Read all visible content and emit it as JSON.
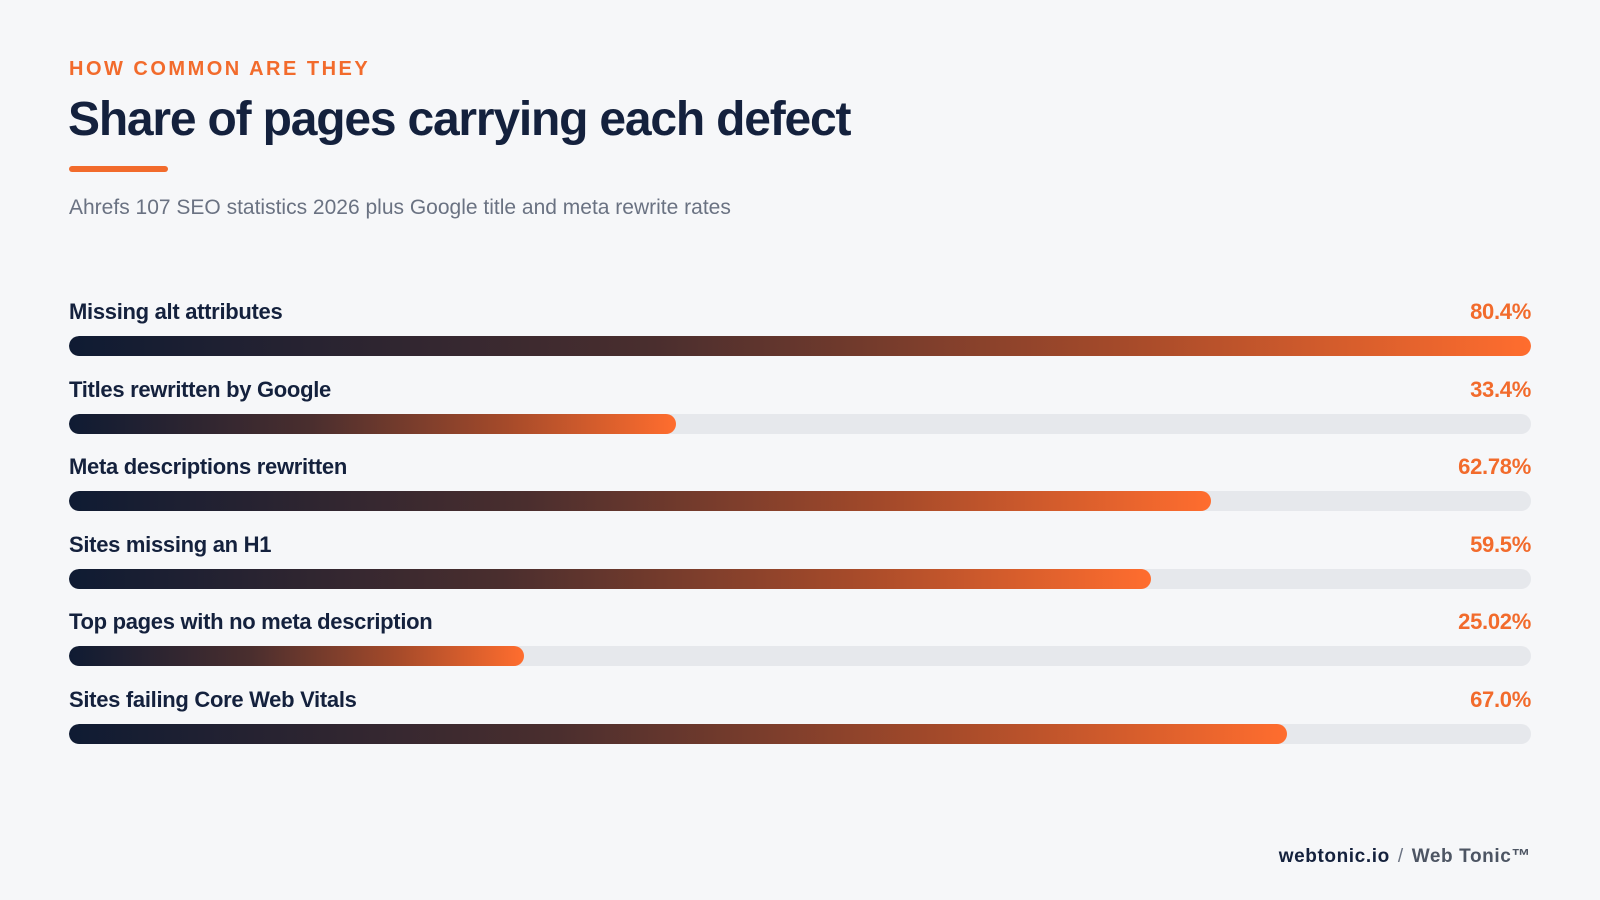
{
  "header": {
    "eyebrow": "HOW COMMON ARE THEY",
    "title": "Share of pages carrying each defect",
    "subtitle": "Ahrefs 107 SEO statistics 2026 plus Google title and meta rewrite rates"
  },
  "chart_data": {
    "type": "bar",
    "orientation": "horizontal",
    "xlim": [
      0,
      80.4
    ],
    "categories": [
      "Missing alt attributes",
      "Titles rewritten by Google",
      "Meta descriptions rewritten",
      "Sites missing an H1",
      "Top pages with no meta description",
      "Sites failing Core Web Vitals"
    ],
    "values": [
      80.4,
      33.4,
      62.78,
      59.5,
      25.02,
      67.0
    ],
    "value_labels": [
      "80.4%",
      "33.4%",
      "62.78%",
      "59.5%",
      "25.02%",
      "67.0%"
    ],
    "colors": {
      "gradient_start": "#0f1b33",
      "gradient_end": "#ff6d2e",
      "track": "#e6e8ec",
      "value_text": "#f26b2c"
    }
  },
  "footer": {
    "domain": "webtonic.io",
    "separator": "/",
    "brand": "Web Tonic™"
  }
}
